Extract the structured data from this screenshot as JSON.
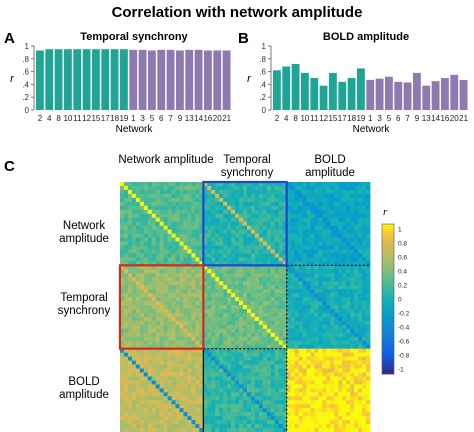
{
  "figure": {
    "title": "Correlation with network amplitude",
    "panel_letters": [
      "A",
      "B",
      "C"
    ]
  },
  "chart_data": [
    {
      "type": "bar",
      "panel": "A",
      "title": "Temporal synchrony",
      "xlabel": "Network",
      "ylabel": "r",
      "ylim": [
        0,
        1
      ],
      "yticks": [
        "0",
        ".2",
        ".4",
        ".6",
        ".8",
        "1"
      ],
      "tick_labels": [
        "2",
        "4",
        "8",
        "10",
        "11",
        "12",
        "15",
        "17",
        "18",
        "19",
        "1",
        "3",
        "5",
        "6",
        "7",
        "9",
        "13",
        "14",
        "16",
        "20",
        "21"
      ],
      "groups": [
        {
          "color": "#1fa596",
          "categories": [
            "2",
            "4",
            "8",
            "10",
            "11",
            "12",
            "15",
            "17",
            "18",
            "19"
          ],
          "values": [
            0.93,
            0.95,
            0.95,
            0.95,
            0.95,
            0.95,
            0.95,
            0.95,
            0.95,
            0.95
          ]
        },
        {
          "color": "#8e7ab0",
          "categories": [
            "1",
            "3",
            "5",
            "6",
            "7",
            "9",
            "13",
            "14",
            "16",
            "20",
            "21"
          ],
          "values": [
            0.94,
            0.94,
            0.93,
            0.94,
            0.94,
            0.93,
            0.94,
            0.94,
            0.93,
            0.93,
            0.93
          ]
        }
      ]
    },
    {
      "type": "bar",
      "panel": "B",
      "title": "BOLD amplitude",
      "xlabel": "Network",
      "ylabel": "r",
      "ylim": [
        0,
        1
      ],
      "yticks": [
        "0",
        ".2",
        ".4",
        ".6",
        ".8",
        "1"
      ],
      "tick_labels": [
        "2",
        "4",
        "8",
        "10",
        "11",
        "12",
        "15",
        "17",
        "18",
        "19",
        "1",
        "3",
        "5",
        "6",
        "7",
        "9",
        "13",
        "14",
        "16",
        "20",
        "21"
      ],
      "groups": [
        {
          "color": "#1fa596",
          "categories": [
            "2",
            "4",
            "8",
            "10",
            "11",
            "12",
            "15",
            "17",
            "18",
            "19"
          ],
          "values": [
            0.62,
            0.68,
            0.72,
            0.58,
            0.5,
            0.38,
            0.58,
            0.44,
            0.5,
            0.65
          ]
        },
        {
          "color": "#8e7ab0",
          "categories": [
            "1",
            "3",
            "5",
            "6",
            "7",
            "9",
            "13",
            "14",
            "16",
            "20",
            "21"
          ],
          "values": [
            0.47,
            0.49,
            0.52,
            0.44,
            0.43,
            0.58,
            0.38,
            0.45,
            0.5,
            0.55,
            0.47
          ]
        }
      ]
    },
    {
      "type": "heatmap",
      "panel": "C",
      "column_labels": [
        "Network amplitude",
        "Temporal synchrony",
        "BOLD amplitude"
      ],
      "row_labels": [
        "Network amplitude",
        "Temporal synchrony",
        "BOLD amplitude"
      ],
      "colorbar": {
        "label": "r",
        "range": [
          -1,
          1
        ],
        "ticks": [
          "1",
          "0.8",
          "0.6",
          "0.4",
          "0.2",
          "0",
          "-0.2",
          "-0.4",
          "-0.6",
          "-0.8",
          "-1"
        ]
      },
      "block_means": [
        [
          0.22,
          0.05,
          -0.1
        ],
        [
          0.45,
          0.3,
          -0.02
        ],
        [
          0.62,
          0.1,
          0.92
        ]
      ],
      "highlight_boxes": [
        {
          "block": [
            0,
            1
          ],
          "color": "#1f45d6"
        },
        {
          "block": [
            1,
            0
          ],
          "color": "#d42a1c"
        }
      ]
    }
  ]
}
